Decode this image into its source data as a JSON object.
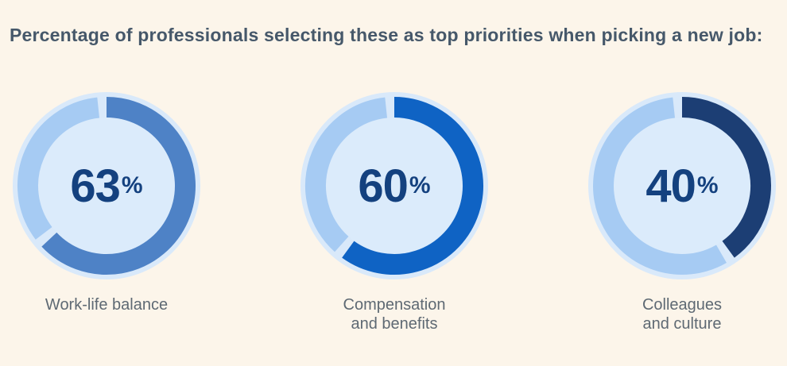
{
  "chart_data": {
    "type": "pie",
    "variant": "donut",
    "title": "Percentage of professionals selecting these as top priorities when picking a new job:",
    "unit": "%",
    "legend_position": "none",
    "start_angle_deg": -90,
    "direction": "clockwise",
    "segment_gap_deg": 6,
    "items": [
      {
        "label": "Work-life balance",
        "value": 63,
        "display": "63",
        "color": "#4E82C6"
      },
      {
        "label": "Compensation\nand benefits",
        "value": 60,
        "display": "60",
        "color": "#0F63C4"
      },
      {
        "label": "Colleagues\nand culture",
        "value": 40,
        "display": "40",
        "color": "#1C3E74"
      }
    ],
    "track_color": "#A6CBF3",
    "halo_color": "#D9E9FA",
    "inner_color": "#DBEBFB",
    "number_color": "#14417F",
    "label_color": "#5E6973",
    "title_color": "#46586A",
    "background_color": "#FCF5EA"
  }
}
